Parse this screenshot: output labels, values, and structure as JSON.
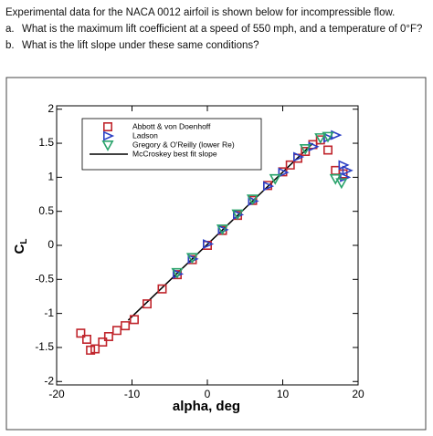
{
  "question": {
    "intro": "Experimental data for the NACA 0012 airfoil is shown below for incompressible flow.",
    "a_label": "a.",
    "a_text": "What is the maximum lift coefficient at a speed of 550 mph, and a temperature of 0°F?",
    "b_label": "b.",
    "b_text": "What is the lift slope under these same conditions?"
  },
  "chart_data": {
    "type": "scatter",
    "x_label": "alpha, deg",
    "y_label": "C",
    "y_label_sub": "L",
    "xlim": [
      -20,
      20
    ],
    "ylim": [
      -2.05,
      2.05
    ],
    "xticks": [
      -20,
      -10,
      0,
      10,
      20
    ],
    "yticks": [
      -2,
      -1.5,
      -1,
      -0.5,
      0,
      0.5,
      1,
      1.5,
      2
    ],
    "series": [
      {
        "name": "Abbott & von Doenhoff",
        "color": "#c0262d",
        "marker": "square",
        "x": [
          -16.8,
          -16,
          -15.5,
          -14.9,
          -13.9,
          -13.1,
          -12,
          -10.9,
          -9.7,
          -8,
          -6,
          -4,
          -2,
          0,
          2,
          4,
          6,
          8,
          10,
          11,
          12,
          13,
          14,
          15,
          16,
          17,
          18
        ],
        "values": [
          -1.29,
          -1.38,
          -1.54,
          -1.52,
          -1.42,
          -1.34,
          -1.25,
          -1.18,
          -1.09,
          -0.86,
          -0.64,
          -0.43,
          -0.21,
          0,
          0.22,
          0.44,
          0.66,
          0.88,
          1.08,
          1.18,
          1.28,
          1.38,
          1.48,
          1.55,
          1.4,
          1.1,
          1.05
        ]
      },
      {
        "name": "Ladson",
        "color": "#2b3fc4",
        "marker": "triangle-right",
        "x": [
          -4,
          -2,
          0,
          2,
          4,
          6,
          8,
          10,
          12,
          14,
          16,
          17,
          18,
          18.5,
          18.2
        ],
        "values": [
          -0.42,
          -0.2,
          0.02,
          0.23,
          0.45,
          0.65,
          0.87,
          1.07,
          1.3,
          1.45,
          1.58,
          1.62,
          1.18,
          1.1,
          1.0
        ]
      },
      {
        "name": "Gregory & O'Reilly (lower Re)",
        "color": "#2aa36b",
        "marker": "triangle-down",
        "x": [
          -4,
          -2,
          2,
          4,
          6,
          9,
          13,
          15,
          16,
          17,
          17.8
        ],
        "values": [
          -0.4,
          -0.18,
          0.24,
          0.46,
          0.68,
          0.98,
          1.42,
          1.58,
          1.6,
          0.98,
          0.92
        ]
      }
    ],
    "fit_line": {
      "name": "McCroskey best fit slope",
      "color": "#000000",
      "x": [
        -10.5,
        14
      ],
      "values": [
        -1.1,
        1.5
      ]
    }
  }
}
